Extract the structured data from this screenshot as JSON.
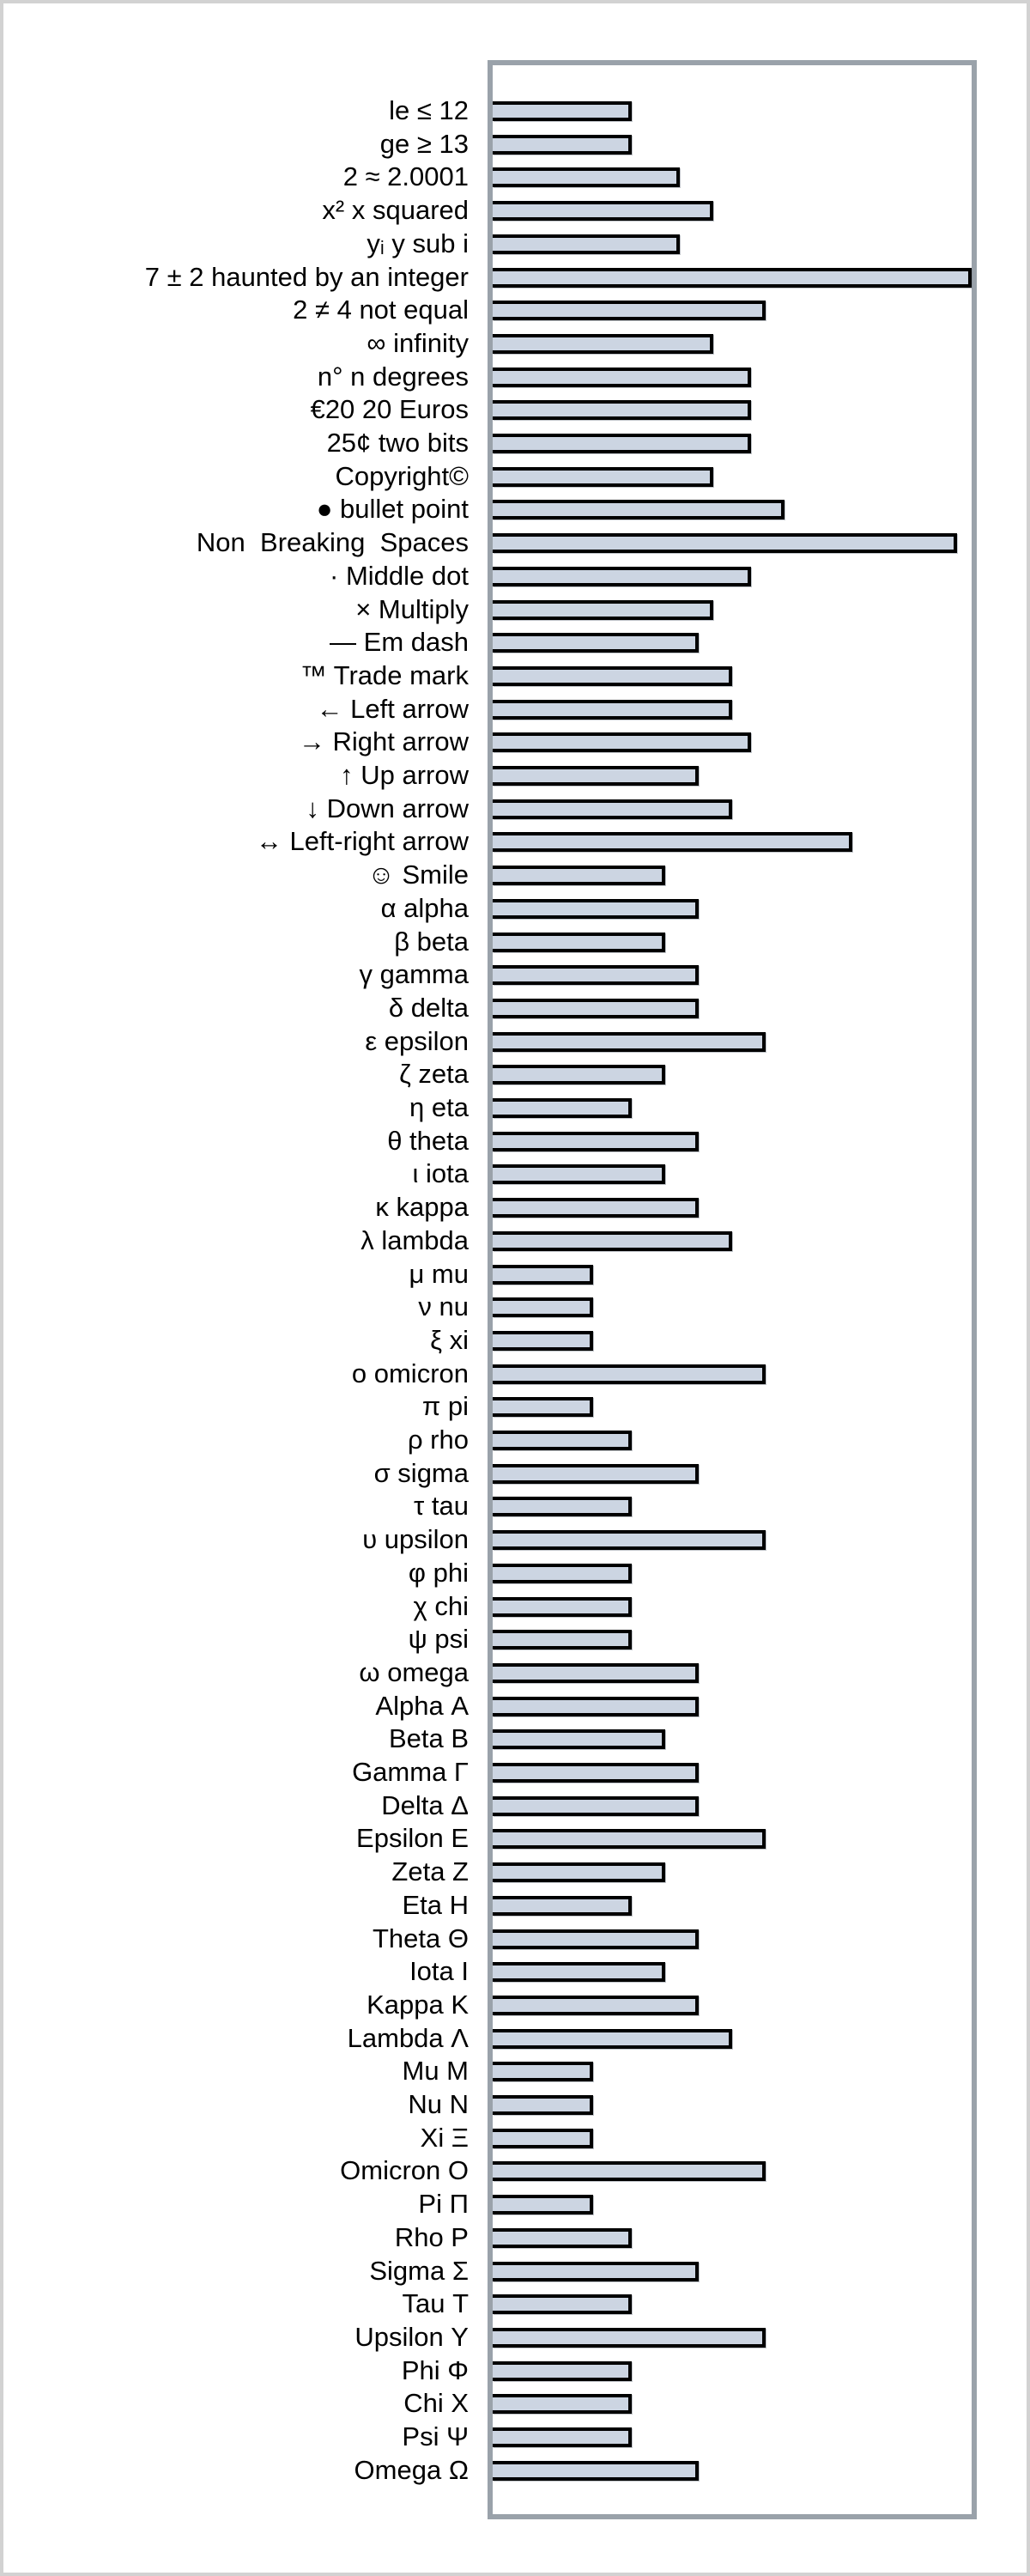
{
  "page": {
    "title": "",
    "background_color": "#ffffff",
    "frame_color": "#d2d2d2"
  },
  "chart_data": {
    "type": "bar",
    "orientation": "horizontal",
    "title": "",
    "xlabel": "",
    "ylabel": "",
    "xlim": [
      0,
      100
    ],
    "grid": false,
    "legend": null,
    "axis_ticks_visible": false,
    "plot_border_color": "#9aa2aa",
    "bar_fill_color": "#ccd5e2",
    "bar_border_color": "#000000",
    "categories": [
      "le ≤ 12",
      "ge ≥ 13",
      "2 ≈ 2.0001",
      "x² x squared",
      "yᵢ y sub i",
      "7 ± 2 haunted by an integer",
      "2 ≠ 4 not equal",
      "∞ infinity",
      "n° n degrees",
      "€20 20 Euros",
      "25¢ two bits",
      "Copyright©",
      "● bullet point",
      "Non  Breaking  Spaces",
      "· Middle dot",
      "× Multiply",
      "— Em dash",
      "™ Trade mark",
      "← Left arrow",
      "→ Right arrow",
      "↑ Up arrow",
      "↓ Down arrow",
      "↔ Left-right arrow",
      "☺ Smile",
      "α alpha",
      "β beta",
      "γ gamma",
      "δ delta",
      "ε epsilon",
      "ζ zeta",
      "η eta",
      "θ theta",
      "ι iota",
      "κ kappa",
      "λ lambda",
      "μ mu",
      "ν nu",
      "ξ xi",
      "ο omicron",
      "π pi",
      "ρ rho",
      "σ sigma",
      "τ tau",
      "υ upsilon",
      "φ phi",
      "χ chi",
      "ψ psi",
      "ω omega",
      "Alpha Α",
      "Beta Β",
      "Gamma Γ",
      "Delta Δ",
      "Epsilon Ε",
      "Zeta Ζ",
      "Eta Η",
      "Theta Θ",
      "Iota Ι",
      "Kappa Κ",
      "Lambda Λ",
      "Mu Μ",
      "Nu Ν",
      "Xi Ξ",
      "Omicron Ο",
      "Pi Π",
      "Rho Ρ",
      "Sigma Σ",
      "Tau Τ",
      "Upsilon Υ",
      "Phi Φ",
      "Chi Χ",
      "Psi Ψ",
      "Omega Ω"
    ],
    "values": [
      29,
      29,
      39,
      46,
      39,
      100,
      57,
      46,
      54,
      54,
      54,
      46,
      61,
      97,
      54,
      46,
      43,
      50,
      50,
      54,
      43,
      50,
      75,
      36,
      43,
      36,
      43,
      43,
      57,
      36,
      29,
      43,
      36,
      43,
      50,
      21,
      21,
      21,
      57,
      21,
      29,
      43,
      29,
      57,
      29,
      29,
      29,
      43,
      43,
      36,
      43,
      43,
      57,
      36,
      29,
      43,
      36,
      43,
      50,
      21,
      21,
      21,
      57,
      21,
      29,
      43,
      29,
      57,
      29,
      29,
      29,
      43
    ]
  }
}
